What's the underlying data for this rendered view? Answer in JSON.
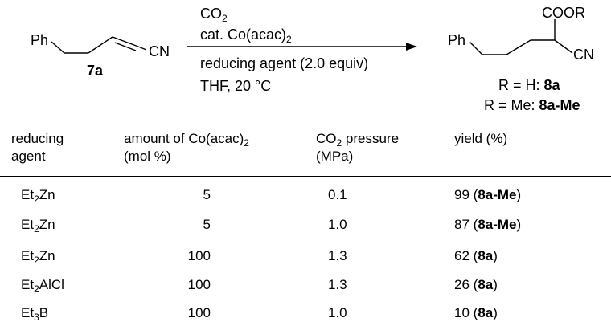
{
  "scheme": {
    "reactant": {
      "ph_label": "Ph",
      "cn_label": "CN",
      "compound_label": "7a"
    },
    "conditions": {
      "reagent_co2": {
        "main": "CO",
        "sub": "2"
      },
      "catalyst": {
        "main": "cat. Co(acac)",
        "sub": "2"
      },
      "reducing_agent": "reducing agent (2.0 equiv)",
      "solvent_temp": "THF, 20 °C"
    },
    "product": {
      "ph_label": "Ph",
      "coor_label": "COOR",
      "cn_label": "CN",
      "r_h_prefix": "R = H: ",
      "r_h_compound": "8a",
      "r_me_prefix": "R = Me: ",
      "r_me_compound": "8a-Me"
    }
  },
  "table": {
    "headers": {
      "reducing_agent_l1": "reducing",
      "reducing_agent_l2": "agent",
      "amount_l1_prefix": "amount of  Co(acac)",
      "amount_l1_sub": "2",
      "amount_l2": "(mol %)",
      "pressure_l1_main": "CO",
      "pressure_l1_sub": "2",
      "pressure_l1_rest": " pressure",
      "pressure_l2": "(MPa)",
      "yield": "yield (%)"
    },
    "rows": [
      {
        "agent_pre": "Et",
        "agent_sub": "2",
        "agent_post": "Zn",
        "amount": "5",
        "pressure": "0.1",
        "yield_value": "99",
        "yield_compound": "8a-Me"
      },
      {
        "agent_pre": "Et",
        "agent_sub": "2",
        "agent_post": "Zn",
        "amount": "5",
        "pressure": "1.0",
        "yield_value": "87",
        "yield_compound": "8a-Me"
      },
      {
        "agent_pre": "Et",
        "agent_sub": "2",
        "agent_post": "Zn",
        "amount": "100",
        "pressure": "1.3",
        "yield_value": "62",
        "yield_compound": "8a"
      },
      {
        "agent_pre": "Et",
        "agent_sub": "2",
        "agent_post": "AlCl",
        "amount": "100",
        "pressure": "1.3",
        "yield_value": "26",
        "yield_compound": "8a"
      },
      {
        "agent_pre": "Et",
        "agent_sub": "3",
        "agent_post": "B",
        "amount": "100",
        "pressure": "1.0",
        "yield_value": "10",
        "yield_compound": "8a"
      }
    ]
  }
}
